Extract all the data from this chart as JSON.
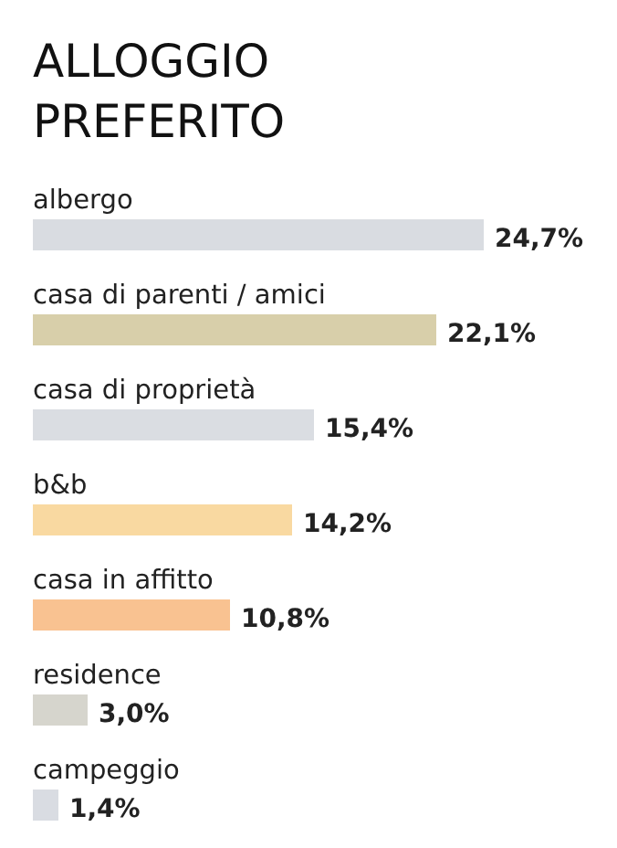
{
  "chart_data": {
    "type": "bar",
    "orientation": "horizontal",
    "title": "ALLOGGIO PREFERITO",
    "categories": [
      "albergo",
      "casa di parenti / amici",
      "casa di proprietà",
      "b&b",
      "casa in affitto",
      "residence",
      "campeggio"
    ],
    "values": [
      24.7,
      22.1,
      15.4,
      14.2,
      10.8,
      3.0,
      1.4
    ],
    "value_labels": [
      "24,7%",
      "22,1%",
      "15,4%",
      "14,2%",
      "10,8%",
      "3,0%",
      "1,4%"
    ],
    "colors": [
      "#d9dce1",
      "#d8cfaa",
      "#dadde2",
      "#f9d9a1",
      "#f9c291",
      "#d6d5cd",
      "#d9dce2"
    ]
  }
}
